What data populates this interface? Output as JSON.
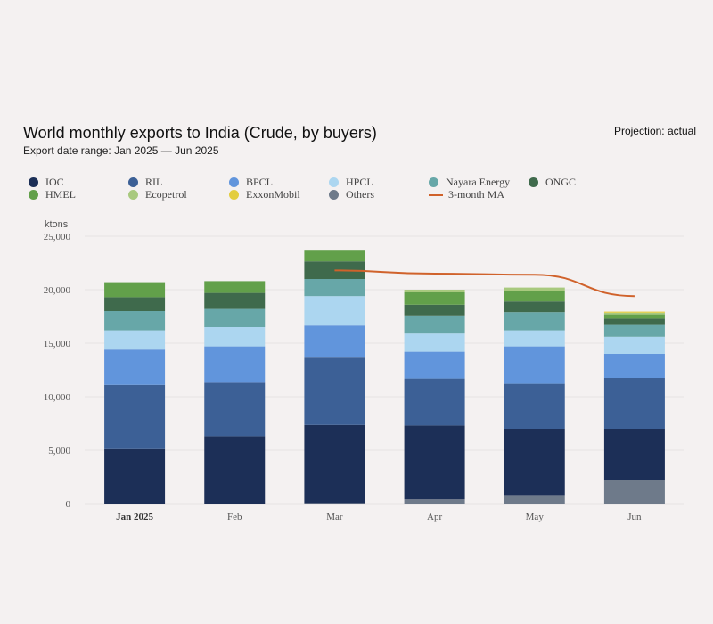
{
  "header": {
    "title": "World monthly exports to India (Crude, by buyers)",
    "subtitle": "Export date range: Jan 2025 — Jun 2025",
    "projection": "Projection: actual"
  },
  "chart_data": {
    "type": "bar",
    "stacked": true,
    "title": "World monthly exports to India (Crude, by buyers)",
    "ylabel": "ktons",
    "xlabel": "",
    "ylim": [
      0,
      25000
    ],
    "yticks": [
      0,
      5000,
      10000,
      15000,
      20000,
      25000
    ],
    "ytick_labels": [
      "0",
      "5,000",
      "10,000",
      "15,000",
      "20,000",
      "25,000"
    ],
    "grid": true,
    "legend_position": "top",
    "categories": [
      "Jan 2025",
      "Feb",
      "Mar",
      "Apr",
      "May",
      "Jun"
    ],
    "series": [
      {
        "name": "Others",
        "color": "#6e7a8a",
        "values": [
          0,
          0,
          50,
          400,
          800,
          2250
        ]
      },
      {
        "name": "IOC",
        "color": "#1c2f57",
        "values": [
          5100,
          6300,
          7300,
          6900,
          6200,
          4750
        ]
      },
      {
        "name": "RIL",
        "color": "#3c6096",
        "values": [
          6000,
          5000,
          6300,
          4400,
          4200,
          4750
        ]
      },
      {
        "name": "BPCL",
        "color": "#6195dc",
        "values": [
          3300,
          3400,
          3000,
          2500,
          3500,
          2250
        ]
      },
      {
        "name": "HPCL",
        "color": "#acd6f0",
        "values": [
          1800,
          1800,
          2750,
          1700,
          1500,
          1600
        ]
      },
      {
        "name": "Nayara Energy",
        "color": "#67a7a8",
        "values": [
          1800,
          1700,
          1600,
          1700,
          1700,
          1100
        ]
      },
      {
        "name": "ONGC",
        "color": "#3f6a4c",
        "values": [
          1300,
          1500,
          1650,
          1000,
          1000,
          600
        ]
      },
      {
        "name": "HMEL",
        "color": "#62a04a",
        "values": [
          1400,
          1100,
          1000,
          1150,
          1000,
          400
        ]
      },
      {
        "name": "Ecopetrol",
        "color": "#a8c97e",
        "values": [
          0,
          0,
          0,
          250,
          300,
          150
        ]
      },
      {
        "name": "ExxonMobil",
        "color": "#e3cd3e",
        "values": [
          0,
          0,
          0,
          0,
          0,
          100
        ]
      }
    ],
    "line_series": {
      "name": "3-month MA",
      "color": "#d0622b",
      "values": [
        null,
        null,
        21800,
        21500,
        21400,
        19400
      ]
    },
    "legend": [
      {
        "name": "IOC",
        "color": "#1c2f57",
        "kind": "dot"
      },
      {
        "name": "RIL",
        "color": "#3c6096",
        "kind": "dot"
      },
      {
        "name": "BPCL",
        "color": "#6195dc",
        "kind": "dot"
      },
      {
        "name": "HPCL",
        "color": "#acd6f0",
        "kind": "dot"
      },
      {
        "name": "Nayara Energy",
        "color": "#67a7a8",
        "kind": "dot"
      },
      {
        "name": "ONGC",
        "color": "#3f6a4c",
        "kind": "dot"
      },
      {
        "name": "HMEL",
        "color": "#62a04a",
        "kind": "dot"
      },
      {
        "name": "Ecopetrol",
        "color": "#a8c97e",
        "kind": "dot"
      },
      {
        "name": "ExxonMobil",
        "color": "#e3cd3e",
        "kind": "dot"
      },
      {
        "name": "Others",
        "color": "#6e7a8a",
        "kind": "dot"
      },
      {
        "name": "3-month MA",
        "color": "#d0622b",
        "kind": "line"
      }
    ]
  }
}
